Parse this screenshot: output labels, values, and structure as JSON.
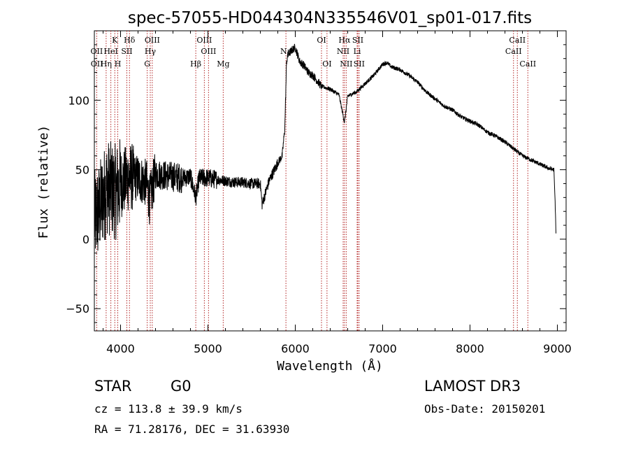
{
  "chart_data": {
    "type": "line",
    "title": "spec-57055-HD044304N335546V01_sp01-017.fits",
    "xlabel": "Wavelength (Å)",
    "ylabel": "Flux (relative)",
    "xlim": [
      3700,
      9100
    ],
    "ylim": [
      -66,
      150
    ],
    "xticks": [
      4000,
      5000,
      6000,
      7000,
      8000,
      9000
    ],
    "yticks": [
      -50,
      0,
      50,
      100
    ],
    "line_color": "#000000",
    "marker_color": "#b22222",
    "spectrum_knots": {
      "x": [
        3700,
        3750,
        3800,
        3850,
        3900,
        3950,
        4000,
        4050,
        4100,
        4200,
        4300,
        4330,
        4400,
        4500,
        4600,
        4700,
        4800,
        4861,
        4900,
        5000,
        5100,
        5200,
        5300,
        5400,
        5500,
        5600,
        5620,
        5700,
        5800,
        5850,
        5880,
        5900,
        5920,
        5960,
        6000,
        6050,
        6100,
        6150,
        6200,
        6300,
        6400,
        6500,
        6563,
        6600,
        6700,
        6800,
        6850,
        6900,
        6950,
        7000,
        7050,
        7100,
        7200,
        7300,
        7400,
        7500,
        7600,
        7700,
        7800,
        7900,
        8000,
        8100,
        8200,
        8300,
        8400,
        8500,
        8600,
        8700,
        8800,
        8900,
        8960,
        8975,
        8985
      ],
      "y": [
        15,
        20,
        30,
        38,
        35,
        34,
        40,
        42,
        45,
        44,
        40,
        28,
        47,
        46,
        45,
        44,
        45,
        30,
        44,
        44,
        43,
        42,
        41,
        41,
        40,
        40,
        25,
        42,
        55,
        60,
        80,
        128,
        133,
        136,
        138,
        128,
        125,
        120,
        118,
        110,
        108,
        104,
        84,
        103,
        106,
        112,
        115,
        118,
        122,
        126,
        127,
        124,
        122,
        118,
        113,
        106,
        101,
        96,
        93,
        88,
        85,
        82,
        77,
        74,
        70,
        65,
        60,
        57,
        54,
        51,
        50,
        25,
        2
      ]
    },
    "spectral_lines": [
      {
        "label": "Hδ",
        "x": 4102,
        "row": 1
      },
      {
        "label": "K",
        "x": 3934,
        "row": 1
      },
      {
        "label": "Hδ",
        "x": 4102,
        "row": 1,
        "dup": true
      },
      {
        "label": "OIII",
        "x": 4363,
        "row": 1
      },
      {
        "label": "OIII",
        "x": 4959,
        "row": 1
      },
      {
        "label": "OI",
        "x": 6300,
        "row": 1
      },
      {
        "label": "Hα",
        "x": 6563,
        "row": 1
      },
      {
        "label": "SII",
        "x": 6716,
        "row": 1
      },
      {
        "label": "CaII",
        "x": 8542,
        "row": 1
      },
      {
        "label": "OII",
        "x": 3727,
        "row": 2
      },
      {
        "label": "HeI",
        "x": 3889,
        "row": 2
      },
      {
        "label": "SII",
        "x": 4072,
        "row": 2
      },
      {
        "label": "Hγ",
        "x": 4340,
        "row": 2
      },
      {
        "label": "OIII",
        "x": 5007,
        "row": 2
      },
      {
        "label": "Na",
        "x": 5893,
        "row": 2
      },
      {
        "label": "NII",
        "x": 6548,
        "row": 2
      },
      {
        "label": "Li",
        "x": 6708,
        "row": 2
      },
      {
        "label": "CaII",
        "x": 8498,
        "row": 2
      },
      {
        "label": "OII",
        "x": 3729,
        "row": 3
      },
      {
        "label": "Hη",
        "x": 3835,
        "row": 3
      },
      {
        "label": "H",
        "x": 3968,
        "row": 3
      },
      {
        "label": "G",
        "x": 4305,
        "row": 3
      },
      {
        "label": "Hβ",
        "x": 4861,
        "row": 3
      },
      {
        "label": "Mg",
        "x": 5175,
        "row": 3
      },
      {
        "label": "OI",
        "x": 6363,
        "row": 3
      },
      {
        "label": "NII",
        "x": 6583,
        "row": 3
      },
      {
        "label": "SII",
        "x": 6731,
        "row": 3
      },
      {
        "label": "CaII",
        "x": 8662,
        "row": 3
      }
    ],
    "marker_lines_x": [
      3727,
      3835,
      3889,
      3934,
      3968,
      4072,
      4102,
      4305,
      4340,
      4363,
      4861,
      4959,
      5007,
      5175,
      5893,
      6300,
      6363,
      6548,
      6563,
      6583,
      6708,
      6716,
      6731,
      8498,
      8542,
      8662
    ]
  },
  "info": {
    "object_type": "STAR",
    "subclass": "G0",
    "survey": "LAMOST DR3",
    "cz": "cz = 113.8 ± 39.9 km/s",
    "obs_date": "Obs-Date: 20150201",
    "coords": "RA =  71.28176, DEC =  31.63930"
  }
}
